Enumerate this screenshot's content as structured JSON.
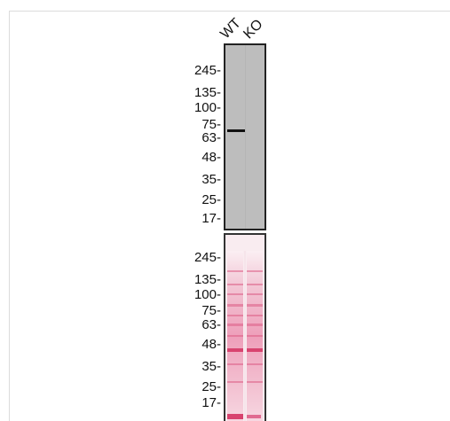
{
  "blot": {
    "lanes": [
      "WT",
      "KO"
    ],
    "markers_top": [
      "245-",
      "135-",
      "100-",
      "75-",
      "63-",
      "48-",
      "35-",
      "25-",
      "17-"
    ],
    "markers_bottom": [
      "245-",
      "135-",
      "100-",
      "75-",
      "63-",
      "48-",
      "35-",
      "25-",
      "17-"
    ],
    "panel_top_color": "#bdbdbd",
    "stain_color": "#d8436f"
  }
}
